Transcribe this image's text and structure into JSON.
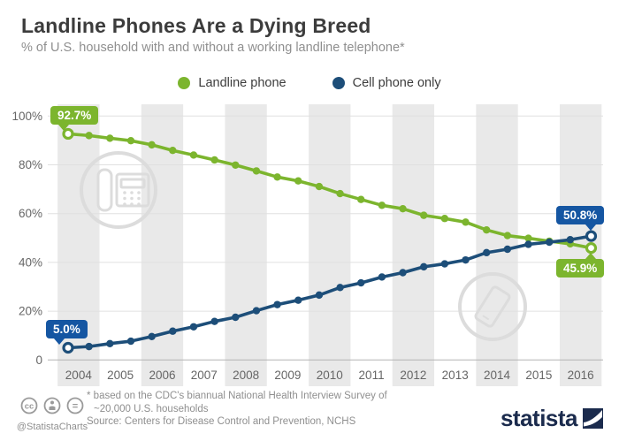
{
  "header": {
    "title": "Landline Phones Are a Dying Breed",
    "subtitle": "% of U.S. household with and without a working landline telephone*"
  },
  "legend": [
    {
      "label": "Landline phone",
      "color": "#7cb52e"
    },
    {
      "label": "Cell phone only",
      "color": "#1d4e79"
    }
  ],
  "chart_data": {
    "type": "line",
    "x_tick_labels": [
      "2004",
      "2005",
      "2006",
      "2007",
      "2008",
      "2009",
      "2010",
      "2011",
      "2012",
      "2013",
      "2014",
      "2015",
      "2016"
    ],
    "points_per_year": 2,
    "y_ticks": [
      "100%",
      "80%",
      "60%",
      "40%",
      "20%",
      "0"
    ],
    "ylim": [
      0,
      100
    ],
    "grid": true,
    "series": [
      {
        "name": "Landline phone",
        "color": "#7cb52e",
        "values": [
          92.7,
          92.0,
          90.9,
          89.9,
          88.2,
          85.9,
          84.0,
          82.0,
          79.9,
          77.5,
          75.0,
          73.4,
          71.1,
          68.2,
          65.8,
          63.4,
          62.0,
          59.3,
          58.0,
          56.5,
          53.3,
          51.0,
          49.9,
          48.7,
          47.6,
          45.9
        ]
      },
      {
        "name": "Cell phone only",
        "color": "#1d4e79",
        "values": [
          5.0,
          5.5,
          6.7,
          7.7,
          9.6,
          11.8,
          13.6,
          15.8,
          17.5,
          20.2,
          22.7,
          24.5,
          26.6,
          29.7,
          31.6,
          34.0,
          35.8,
          38.2,
          39.4,
          41.0,
          44.0,
          45.4,
          47.4,
          48.3,
          49.3,
          50.8
        ]
      }
    ],
    "callouts": {
      "landline_start": "92.7%",
      "cell_start": "5.0%",
      "cell_end": "50.8%",
      "landline_end": "45.9%"
    },
    "colors": {
      "callout_green": "#7cb52e",
      "callout_blue": "#1556a2",
      "band": "#e9e9e9",
      "gridline": "#e0e0e0",
      "axis_line": "#b3b3b3",
      "tick_text": "#666666",
      "watermark": "#dcdcdc"
    }
  },
  "footnote": {
    "line1": "* based on the CDC's biannual National Health Interview Survey of",
    "line2": "~20,000 U.S. households",
    "source": "Source: Centers for Disease Control and Prevention, NCHS"
  },
  "credits": {
    "handle": "@StatistaCharts"
  },
  "branding": {
    "logo_text": "statista",
    "navy": "#1b2b4d"
  }
}
